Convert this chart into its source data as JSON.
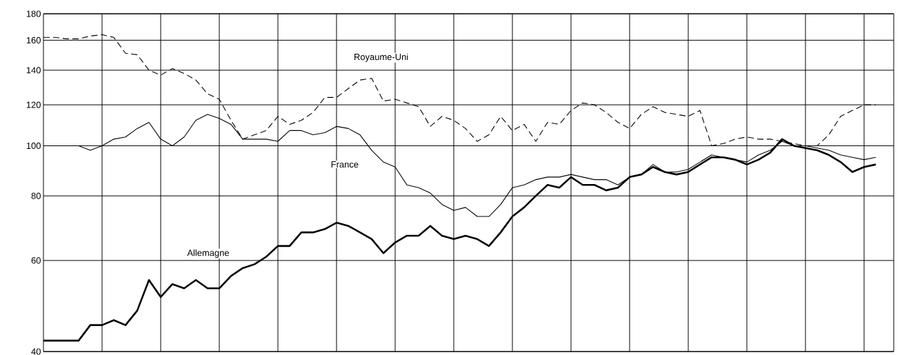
{
  "chart_data": {
    "type": "line",
    "log": "y",
    "categories": [
      null,
      null,
      null,
      null,
      null,
      null,
      null,
      null,
      null,
      null,
      null,
      null,
      null,
      null,
      null,
      null,
      null,
      null,
      null,
      null,
      null,
      null,
      null,
      null,
      null,
      null,
      null,
      null,
      null,
      null,
      null,
      null,
      null,
      null,
      null,
      null,
      null,
      null,
      null,
      null,
      null,
      null,
      null,
      null,
      null,
      null,
      null,
      null,
      null,
      null,
      null,
      null,
      null,
      null,
      null,
      null,
      null,
      null,
      null,
      null,
      null,
      null,
      null,
      null,
      null,
      null,
      null,
      null,
      null,
      null,
      null,
      null
    ],
    "ylim": [
      40,
      180
    ],
    "yticks": [
      40,
      60,
      80,
      100,
      120,
      140,
      160,
      180
    ],
    "tick_labels": "y",
    "grid": true,
    "series": [
      {
        "name": "Royaume-Uni",
        "color": "#000000",
        "line_style": "dashed",
        "values": [
          162,
          162,
          161,
          161,
          163,
          164,
          162,
          151,
          150,
          140,
          137,
          141,
          138,
          134,
          126,
          123,
          112,
          103,
          105,
          107,
          114,
          110,
          112,
          116,
          124,
          124,
          129,
          134,
          135,
          122,
          123,
          121,
          119,
          109,
          114,
          112,
          108,
          102,
          105,
          114,
          107,
          110,
          102,
          111,
          110,
          117,
          121,
          120,
          116,
          111,
          108,
          115,
          119,
          116,
          115,
          114,
          117,
          100,
          101,
          103,
          104,
          103,
          103,
          102,
          101,
          100,
          100,
          105,
          114,
          117,
          120,
          120
        ]
      },
      {
        "name": "France",
        "color": "#000000",
        "line_style": "solid",
        "values": [
          100,
          100,
          100,
          100,
          98,
          100,
          103,
          104,
          108,
          111,
          103,
          100,
          104,
          112,
          115,
          113,
          110,
          103,
          103,
          103,
          102,
          107,
          107,
          105,
          106,
          109,
          108,
          105,
          98,
          93,
          91,
          84,
          83,
          81,
          77,
          75,
          76,
          73,
          73,
          77,
          83,
          84,
          86,
          87,
          87,
          88,
          87,
          86,
          86,
          84,
          87,
          88,
          92,
          89,
          89,
          90,
          93,
          96,
          95,
          94,
          93,
          96,
          98,
          102,
          100,
          100,
          99,
          98,
          96,
          95,
          94,
          95
        ]
      },
      {
        "name": "Allemagne",
        "color": "#000000",
        "line_style": "solid",
        "values": [
          42,
          42,
          42,
          42,
          45,
          45,
          46,
          45,
          48,
          55,
          51,
          54,
          53,
          55,
          53,
          53,
          56,
          58,
          59,
          61,
          64,
          64,
          68,
          68,
          69,
          71,
          70,
          68,
          66,
          62,
          65,
          67,
          67,
          70,
          67,
          66,
          67,
          66,
          64,
          68,
          73,
          76,
          80,
          84,
          83,
          87,
          84,
          84,
          82,
          83,
          87,
          88,
          91,
          89,
          88,
          89,
          92,
          95,
          95,
          94,
          92,
          94,
          97,
          103,
          100,
          99,
          98,
          96,
          93,
          89,
          91,
          92
        ]
      }
    ]
  }
}
